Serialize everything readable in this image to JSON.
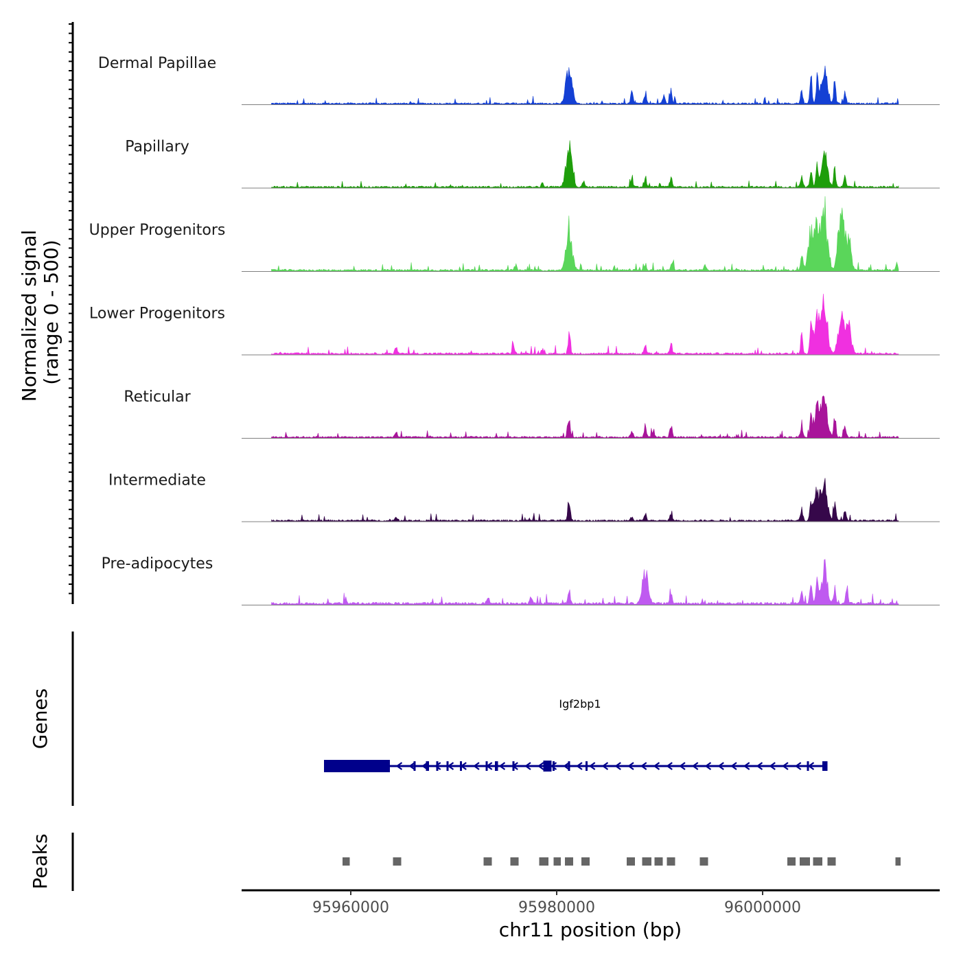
{
  "chart_data": {
    "type": "area",
    "panel": "coverage",
    "chromosome": "chr11",
    "xlabel": "chr11 position (bp)",
    "xlim": [
      95949400,
      96017200
    ],
    "x_ticks": [
      95960000,
      95980000,
      96000000
    ],
    "x_tick_labels": [
      "95960000",
      "95980000",
      "96000000"
    ],
    "ylabel_line1": "Normalized signal",
    "ylabel_line2": "(range 0 - 500)",
    "ylim": [
      0,
      500
    ],
    "data_start": 95952300,
    "data_end": 96013200,
    "series": [
      {
        "name": "Dermal Papillae",
        "color": "#1440D4",
        "baseline": 18,
        "peaks": [
          {
            "x": 95981200,
            "h": 455
          },
          {
            "x": 95987300,
            "h": 195
          },
          {
            "x": 95988600,
            "h": 135
          },
          {
            "x": 95991100,
            "h": 160
          },
          {
            "x": 95990400,
            "h": 110
          },
          {
            "x": 96006000,
            "h": 430
          },
          {
            "x": 96005300,
            "h": 300
          },
          {
            "x": 96004700,
            "h": 250
          },
          {
            "x": 96007000,
            "h": 240
          },
          {
            "x": 96003800,
            "h": 150
          },
          {
            "x": 96008000,
            "h": 130
          }
        ]
      },
      {
        "name": "Papillary",
        "color": "#1E9E0B",
        "baseline": 18,
        "peaks": [
          {
            "x": 95981200,
            "h": 440
          },
          {
            "x": 95982600,
            "h": 70
          },
          {
            "x": 95987300,
            "h": 80
          },
          {
            "x": 95988600,
            "h": 75
          },
          {
            "x": 95991100,
            "h": 110
          },
          {
            "x": 96006000,
            "h": 405
          },
          {
            "x": 96005300,
            "h": 290
          },
          {
            "x": 96004700,
            "h": 240
          },
          {
            "x": 96007000,
            "h": 215
          },
          {
            "x": 96003800,
            "h": 140
          },
          {
            "x": 96008000,
            "h": 120
          },
          {
            "x": 95978600,
            "h": 50
          }
        ]
      },
      {
        "name": "Upper Progenitors",
        "color": "#5AD65A",
        "baseline": 20,
        "peaks": [
          {
            "x": 95981200,
            "h": 490
          },
          {
            "x": 95988600,
            "h": 75
          },
          {
            "x": 95991200,
            "h": 120
          },
          {
            "x": 95994400,
            "h": 60
          },
          {
            "x": 96006000,
            "h": 685
          },
          {
            "x": 96007600,
            "h": 740
          },
          {
            "x": 96005300,
            "h": 510
          },
          {
            "x": 96004700,
            "h": 380
          },
          {
            "x": 96008300,
            "h": 340
          },
          {
            "x": 96003800,
            "h": 220
          },
          {
            "x": 96013000,
            "h": 80
          },
          {
            "x": 95976000,
            "h": 70
          }
        ]
      },
      {
        "name": "Lower Progenitors",
        "color": "#F030E0",
        "baseline": 20,
        "peaks": [
          {
            "x": 95981200,
            "h": 210
          },
          {
            "x": 95988600,
            "h": 110
          },
          {
            "x": 95991100,
            "h": 125
          },
          {
            "x": 96006000,
            "h": 660
          },
          {
            "x": 96007600,
            "h": 430
          },
          {
            "x": 96005300,
            "h": 470
          },
          {
            "x": 96004700,
            "h": 300
          },
          {
            "x": 96008300,
            "h": 330
          },
          {
            "x": 96003800,
            "h": 180
          },
          {
            "x": 95975800,
            "h": 95
          },
          {
            "x": 95964400,
            "h": 75
          },
          {
            "x": 95978600,
            "h": 60
          }
        ]
      },
      {
        "name": "Reticular",
        "color": "#A8149A",
        "baseline": 18,
        "peaks": [
          {
            "x": 95981200,
            "h": 250
          },
          {
            "x": 95987300,
            "h": 70
          },
          {
            "x": 95988600,
            "h": 130
          },
          {
            "x": 95991100,
            "h": 160
          },
          {
            "x": 95989400,
            "h": 90
          },
          {
            "x": 96006000,
            "h": 450
          },
          {
            "x": 96005300,
            "h": 320
          },
          {
            "x": 96004700,
            "h": 250
          },
          {
            "x": 96007000,
            "h": 250
          },
          {
            "x": 96003800,
            "h": 160
          },
          {
            "x": 96008000,
            "h": 140
          },
          {
            "x": 95964400,
            "h": 65
          }
        ]
      },
      {
        "name": "Intermediate",
        "color": "#36084A",
        "baseline": 18,
        "peaks": [
          {
            "x": 95981200,
            "h": 280
          },
          {
            "x": 95988600,
            "h": 80
          },
          {
            "x": 95991100,
            "h": 70
          },
          {
            "x": 96006000,
            "h": 400
          },
          {
            "x": 96005300,
            "h": 330
          },
          {
            "x": 96004700,
            "h": 230
          },
          {
            "x": 96007000,
            "h": 200
          },
          {
            "x": 96003800,
            "h": 140
          },
          {
            "x": 96008000,
            "h": 110
          },
          {
            "x": 95964400,
            "h": 60
          },
          {
            "x": 95987300,
            "h": 45
          }
        ]
      },
      {
        "name": "Pre-adipocytes",
        "color": "#BF5AF0",
        "baseline": 25,
        "peaks": [
          {
            "x": 95988600,
            "h": 390
          },
          {
            "x": 95991100,
            "h": 150
          },
          {
            "x": 95981200,
            "h": 165
          },
          {
            "x": 95973300,
            "h": 90
          },
          {
            "x": 95977500,
            "h": 100
          },
          {
            "x": 95959500,
            "h": 60
          },
          {
            "x": 96006000,
            "h": 410
          },
          {
            "x": 96005300,
            "h": 300
          },
          {
            "x": 96004700,
            "h": 250
          },
          {
            "x": 96007000,
            "h": 190
          },
          {
            "x": 96008200,
            "h": 170
          },
          {
            "x": 96003800,
            "h": 140
          }
        ]
      }
    ],
    "genes_panel": {
      "ylabel": "Genes",
      "gene": {
        "name": "Igf2bp1",
        "color": "#00008B",
        "strand": "-",
        "start": 95957400,
        "end": 96006300,
        "utr3": [
          95957400,
          95963800
        ],
        "exons": [
          [
            95959100,
            95959300
          ],
          [
            95966100,
            95966250
          ],
          [
            95967300,
            95967600
          ],
          [
            95968300,
            95968400
          ],
          [
            95969300,
            95969400
          ],
          [
            95970600,
            95970700
          ],
          [
            95973100,
            95973200
          ],
          [
            95974000,
            95974300
          ],
          [
            95975700,
            95975800
          ],
          [
            95978700,
            95979500
          ],
          [
            95979600,
            95979700
          ],
          [
            95981100,
            95981200
          ],
          [
            95982800,
            95982900
          ],
          [
            96004300,
            96004400
          ],
          [
            96005800,
            96006300
          ]
        ]
      }
    },
    "peaks_panel": {
      "ylabel": "Peaks",
      "color": "#666666",
      "regions": [
        [
          95959200,
          95959900
        ],
        [
          95964100,
          95964900
        ],
        [
          95972900,
          95973700
        ],
        [
          95975500,
          95976300
        ],
        [
          95978300,
          95979200
        ],
        [
          95979700,
          95980400
        ],
        [
          95980800,
          95981600
        ],
        [
          95982400,
          95983200
        ],
        [
          95986800,
          95987600
        ],
        [
          95988300,
          95989200
        ],
        [
          95989500,
          95990300
        ],
        [
          95990700,
          95991500
        ],
        [
          95993900,
          95994700
        ],
        [
          96002400,
          96003200
        ],
        [
          96003600,
          96004600
        ],
        [
          96004900,
          96005800
        ],
        [
          96006300,
          96007100
        ],
        [
          96012900,
          96013400
        ]
      ]
    }
  }
}
